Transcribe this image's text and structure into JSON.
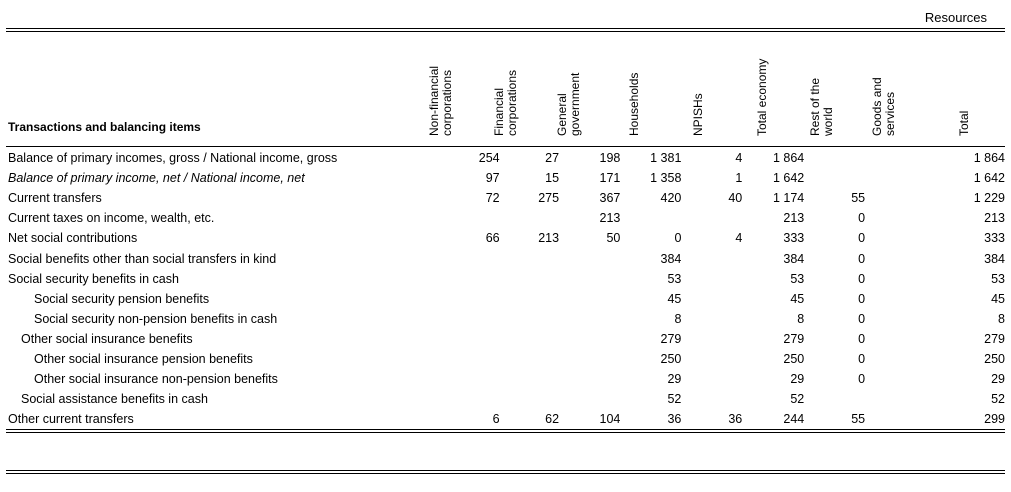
{
  "resources_label": "Resources",
  "row_header": "Transactions and balancing items",
  "columns": [
    {
      "label": "Non-financial corporations",
      "l1": "Non-financial",
      "l2": "corporations"
    },
    {
      "label": "Financial corporations",
      "l1": "Financial",
      "l2": "corporations"
    },
    {
      "label": "General government",
      "l1": "General",
      "l2": "government"
    },
    {
      "label": "Households",
      "l1": "Households",
      "l2": ""
    },
    {
      "label": "NPISHs",
      "l1": "NPISHs",
      "l2": ""
    },
    {
      "label": "Total economy",
      "l1": "Total economy",
      "l2": ""
    },
    {
      "label": "Rest of the world",
      "l1": "Rest of the",
      "l2": "world"
    },
    {
      "label": "Goods and services",
      "l1": "Goods and",
      "l2": "services"
    },
    {
      "label": "Total",
      "l1": "Total",
      "l2": ""
    }
  ],
  "rows": [
    {
      "label": "Balance of primary incomes, gross / National income, gross",
      "indent": 0,
      "italic": false,
      "values": [
        "254",
        "27",
        "198",
        "1 381",
        "4",
        "1 864",
        "",
        "",
        "1 864"
      ]
    },
    {
      "label": "Balance of primary income, net / National income, net",
      "indent": 0,
      "italic": true,
      "values": [
        "97",
        "15",
        "171",
        "1 358",
        "1",
        "1 642",
        "",
        "",
        "1 642"
      ]
    },
    {
      "label": "Current transfers",
      "indent": 0,
      "italic": false,
      "values": [
        "72",
        "275",
        "367",
        "420",
        "40",
        "1 174",
        "55",
        "",
        "1 229"
      ]
    },
    {
      "label": "Current taxes on income, wealth, etc.",
      "indent": 0,
      "italic": false,
      "values": [
        "",
        "",
        "213",
        "",
        "",
        "213",
        "0",
        "",
        "213"
      ]
    },
    {
      "label": "Net social contributions",
      "indent": 0,
      "italic": false,
      "values": [
        "66",
        "213",
        "50",
        "0",
        "4",
        "333",
        "0",
        "",
        "333"
      ]
    },
    {
      "label": "Social benefits other than social transfers in kind",
      "indent": 0,
      "italic": false,
      "values": [
        "",
        "",
        "",
        "384",
        "",
        "384",
        "0",
        "",
        "384"
      ]
    },
    {
      "label": "Social security benefits in cash",
      "indent": 0,
      "italic": false,
      "values": [
        "",
        "",
        "",
        "53",
        "",
        "53",
        "0",
        "",
        "53"
      ]
    },
    {
      "label": "Social security pension benefits",
      "indent": 2,
      "italic": false,
      "values": [
        "",
        "",
        "",
        "45",
        "",
        "45",
        "0",
        "",
        "45"
      ]
    },
    {
      "label": "Social security non-pension benefits in cash",
      "indent": 2,
      "italic": false,
      "values": [
        "",
        "",
        "",
        "8",
        "",
        "8",
        "0",
        "",
        "8"
      ]
    },
    {
      "label": "Other social insurance benefits",
      "indent": 1,
      "italic": false,
      "values": [
        "",
        "",
        "",
        "279",
        "",
        "279",
        "0",
        "",
        "279"
      ]
    },
    {
      "label": "Other social insurance pension benefits",
      "indent": 2,
      "italic": false,
      "values": [
        "",
        "",
        "",
        "250",
        "",
        "250",
        "0",
        "",
        "250"
      ]
    },
    {
      "label": "Other social insurance non-pension benefits",
      "indent": 2,
      "italic": false,
      "values": [
        "",
        "",
        "",
        "29",
        "",
        "29",
        "0",
        "",
        "29"
      ]
    },
    {
      "label": "Social assistance benefits in cash",
      "indent": 1,
      "italic": false,
      "values": [
        "",
        "",
        "",
        "52",
        "",
        "52",
        "",
        "",
        "52"
      ]
    },
    {
      "label": "Other current transfers",
      "indent": 0,
      "italic": false,
      "values": [
        "6",
        "62",
        "104",
        "36",
        "36",
        "244",
        "55",
        "",
        "299"
      ]
    }
  ]
}
